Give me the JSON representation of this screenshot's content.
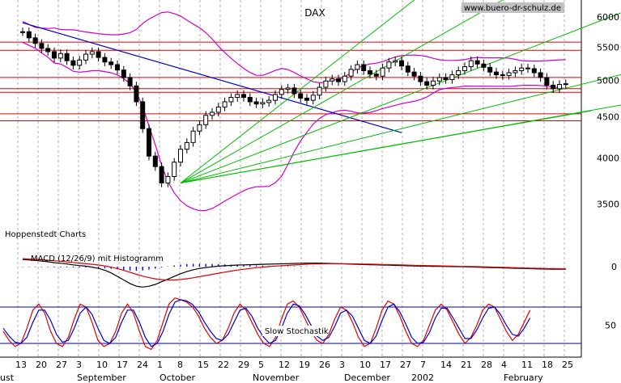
{
  "header": {
    "title": "DAX",
    "watermark": "www.buero-dr-schulz.de"
  },
  "labels": {
    "source": "Hoppenstedt Charts",
    "macd": "MACD (12/26/9) mit Histogramm",
    "stochastic": "Slow Stochastik"
  },
  "colors": {
    "candle": "#000000",
    "bollinger": "#cc00cc",
    "horizontal_lines": "#dd0000",
    "trend_line": "#0000cc",
    "fan_lines": "#00bb00",
    "macd": "#000000",
    "signal": "#dd0000",
    "histogram": "#0000ff",
    "stoch_k": "#dd0000",
    "stoch_d": "#0000cc",
    "grid": "#b0b0b0",
    "divider": "#0000aa"
  },
  "axes": {
    "price_ticks": [
      "6000",
      "5500",
      "5000",
      "4500",
      "4000",
      "3500"
    ],
    "macd_tick": "0",
    "stoch_tick": "50",
    "day_ticks": [
      "13",
      "20",
      "27",
      "3",
      "10",
      "17",
      "24",
      "1",
      "8",
      "15",
      "22",
      "29",
      "5",
      "12",
      "19",
      "26",
      "3",
      "10",
      "17",
      "27",
      "7",
      "14",
      "21",
      "28",
      "4",
      "11",
      "18",
      "25"
    ],
    "month_labels": [
      "ust",
      "September",
      "October",
      "November",
      "December",
      "2002",
      "February"
    ]
  },
  "chart_data": [
    {
      "type": "candlestick",
      "title": "DAX",
      "y_scale": "log",
      "ylim": [
        3300,
        6300
      ],
      "closes": [
        5750,
        5650,
        5560,
        5480,
        5430,
        5330,
        5400,
        5290,
        5220,
        5300,
        5390,
        5430,
        5340,
        5270,
        5230,
        5150,
        5040,
        4920,
        4700,
        4350,
        4020,
        3900,
        3720,
        3790,
        3950,
        4100,
        4180,
        4320,
        4400,
        4520,
        4560,
        4630,
        4700,
        4760,
        4800,
        4760,
        4700,
        4670,
        4690,
        4720,
        4800,
        4870,
        4890,
        4810,
        4750,
        4720,
        4790,
        4900,
        4990,
        5020,
        4980,
        5060,
        5160,
        5230,
        5140,
        5090,
        5060,
        5180,
        5270,
        5290,
        5210,
        5120,
        5060,
        4980,
        4930,
        4990,
        5040,
        5010,
        5080,
        5140,
        5200,
        5290,
        5240,
        5190,
        5120,
        5080,
        5070,
        5110,
        5140,
        5180,
        5170,
        5110,
        5040,
        4930,
        4880,
        4940,
        4950
      ],
      "horizontal_levels": [
        5580,
        5450,
        5040,
        4880,
        4830,
        4540,
        4450
      ],
      "trend_line": {
        "from": [
          0,
          5900
        ],
        "to": [
          60,
          4300
        ]
      },
      "fan_lines": [
        {
          "from": [
            25,
            3720
          ],
          "to": [
            62,
            6300
          ]
        },
        {
          "from": [
            25,
            3720
          ],
          "to": [
            76,
            6300
          ]
        },
        {
          "from": [
            25,
            3720
          ],
          "to": [
            100,
            6300
          ]
        },
        {
          "from": [
            25,
            3720
          ],
          "to": [
            130,
            5950
          ]
        },
        {
          "from": [
            25,
            3720
          ],
          "to": [
            120,
            5050
          ]
        },
        {
          "from": [
            25,
            3720
          ],
          "to": [
            90,
            4580
          ]
        }
      ]
    },
    {
      "type": "line",
      "title": "MACD (12/26/9) mit Histogramm",
      "series": [
        {
          "name": "MACD",
          "values": [
            80,
            75,
            70,
            62,
            55,
            45,
            38,
            30,
            20,
            12,
            5,
            -5,
            -20,
            -40,
            -70,
            -110,
            -150,
            -190,
            -220,
            -230,
            -220,
            -200,
            -170,
            -140,
            -110,
            -80,
            -55,
            -35,
            -20,
            -10,
            -2,
            5,
            10,
            14,
            18,
            20,
            22,
            24,
            26,
            28,
            30,
            32,
            34,
            36,
            38,
            40,
            40,
            39,
            37,
            35,
            33,
            30,
            28,
            26,
            24,
            22,
            20,
            18,
            16,
            14,
            12,
            10,
            8,
            6,
            5,
            4,
            3,
            2,
            1,
            0,
            -2,
            -4,
            -6,
            -8,
            -10,
            -12,
            -14,
            -16,
            -18,
            -20,
            -22,
            -24,
            -26,
            -27,
            -28,
            -28,
            -28
          ]
        },
        {
          "name": "Signal",
          "values": [
            90,
            86,
            82,
            77,
            72,
            66,
            60,
            54,
            47,
            40,
            33,
            26,
            18,
            8,
            -5,
            -22,
            -42,
            -64,
            -86,
            -106,
            -124,
            -137,
            -146,
            -150,
            -150,
            -145,
            -136,
            -125,
            -113,
            -100,
            -87,
            -74,
            -62,
            -50,
            -39,
            -29,
            -20,
            -12,
            -5,
            1,
            6,
            11,
            15,
            19,
            23,
            27,
            30,
            32,
            33,
            34,
            34,
            33,
            32,
            31,
            29,
            28,
            26,
            24,
            23,
            21,
            19,
            17,
            15,
            14,
            12,
            10,
            9,
            7,
            6,
            4,
            3,
            1,
            0,
            -2,
            -4,
            -6,
            -8,
            -10,
            -12,
            -14,
            -16,
            -18,
            -19,
            -21,
            -22,
            -23,
            -24
          ]
        }
      ]
    },
    {
      "type": "line",
      "title": "Slow Stochastik",
      "ylim": [
        0,
        100
      ],
      "series": [
        {
          "name": "%K",
          "values": [
            40,
            25,
            15,
            20,
            45,
            75,
            85,
            70,
            40,
            20,
            15,
            30,
            60,
            85,
            80,
            55,
            25,
            15,
            20,
            40,
            70,
            85,
            70,
            40,
            15,
            10,
            25,
            55,
            85,
            95,
            92,
            88,
            80,
            65,
            45,
            30,
            20,
            25,
            45,
            70,
            85,
            75,
            55,
            35,
            20,
            15,
            30,
            60,
            85,
            90,
            80,
            60,
            40,
            25,
            20,
            35,
            60,
            80,
            75,
            55,
            30,
            15,
            20,
            45,
            75,
            90,
            85,
            65,
            40,
            20,
            15,
            25,
            50,
            75,
            85,
            75,
            55,
            35,
            20,
            30,
            50,
            75,
            85,
            80,
            60,
            40,
            25,
            35,
            55,
            75
          ]
        },
        {
          "name": "%D",
          "values": [
            45,
            32,
            22,
            20,
            30,
            55,
            75,
            75,
            58,
            35,
            22,
            25,
            45,
            70,
            80,
            68,
            45,
            25,
            20,
            30,
            55,
            75,
            75,
            55,
            30,
            15,
            20,
            40,
            68,
            88,
            92,
            90,
            84,
            72,
            55,
            40,
            28,
            25,
            35,
            55,
            75,
            78,
            65,
            45,
            30,
            20,
            25,
            45,
            70,
            85,
            82,
            68,
            50,
            32,
            25,
            30,
            48,
            70,
            75,
            65,
            45,
            25,
            20,
            32,
            58,
            80,
            85,
            72,
            52,
            30,
            20,
            22,
            38,
            62,
            78,
            78,
            62,
            45,
            28,
            28,
            42,
            62,
            78,
            80,
            68,
            50,
            35,
            32,
            45,
            62
          ]
        }
      ]
    }
  ]
}
